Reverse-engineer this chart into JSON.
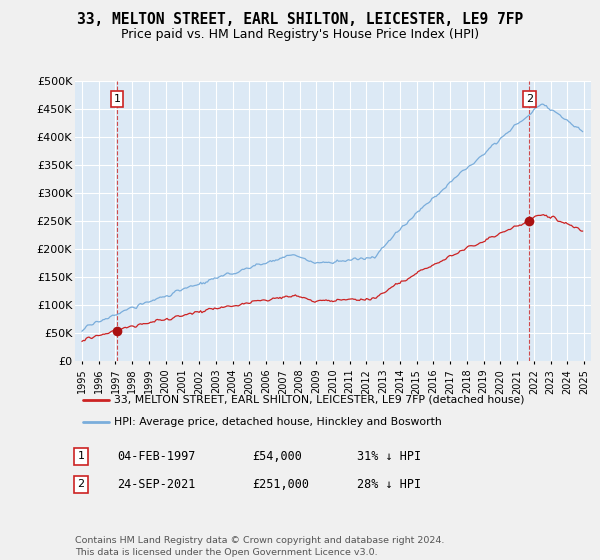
{
  "title": "33, MELTON STREET, EARL SHILTON, LEICESTER, LE9 7FP",
  "subtitle": "Price paid vs. HM Land Registry's House Price Index (HPI)",
  "ylim": [
    0,
    500000
  ],
  "yticks": [
    0,
    50000,
    100000,
    150000,
    200000,
    250000,
    300000,
    350000,
    400000,
    450000,
    500000
  ],
  "ytick_labels": [
    "£0",
    "£50K",
    "£100K",
    "£150K",
    "£200K",
    "£250K",
    "£300K",
    "£350K",
    "£400K",
    "£450K",
    "£500K"
  ],
  "sale1_year": 1997.09,
  "sale1_price": 54000,
  "sale2_year": 2021.73,
  "sale2_price": 251000,
  "hpi_color": "#7aaddb",
  "price_color": "#cc2222",
  "sale_dot_color": "#aa1111",
  "plot_bg_color": "#dce9f5",
  "fig_bg_color": "#f0f0f0",
  "grid_color": "#ffffff",
  "legend_line1": "33, MELTON STREET, EARL SHILTON, LEICESTER, LE9 7FP (detached house)",
  "legend_line2": "HPI: Average price, detached house, Hinckley and Bosworth",
  "table_row1": [
    "1",
    "04-FEB-1997",
    "£54,000",
    "31% ↓ HPI"
  ],
  "table_row2": [
    "2",
    "24-SEP-2021",
    "£251,000",
    "28% ↓ HPI"
  ],
  "footnote": "Contains HM Land Registry data © Crown copyright and database right 2024.\nThis data is licensed under the Open Government Licence v3.0."
}
